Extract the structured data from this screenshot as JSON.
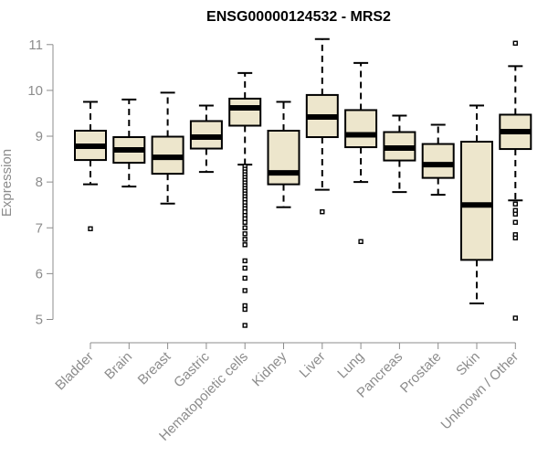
{
  "chart_data": {
    "type": "boxplot",
    "title": "ENSG00000124532 - MRS2",
    "xlabel": "",
    "ylabel": "Expression",
    "ylim": [
      4.7,
      11.3
    ],
    "yticks": [
      5,
      6,
      7,
      8,
      9,
      10,
      11
    ],
    "grid": false,
    "colors": {
      "box_fill": "#ede6cc",
      "stroke": "#000000",
      "axis": "#8c8c8c",
      "text": "#8c8c8c"
    },
    "categories": [
      "Bladder",
      "Brain",
      "Breast",
      "Gastric",
      "Hematopoietic cells",
      "Kidney",
      "Liver",
      "Lung",
      "Pancreas",
      "Prostate",
      "Skin",
      "Unknown / Other"
    ],
    "boxes": [
      {
        "category": "Bladder",
        "whisker_low": 7.95,
        "q1": 8.48,
        "median": 8.78,
        "q3": 9.12,
        "whisker_high": 9.75,
        "outliers": [
          6.98
        ]
      },
      {
        "category": "Brain",
        "whisker_low": 7.9,
        "q1": 8.42,
        "median": 8.7,
        "q3": 8.98,
        "whisker_high": 9.8,
        "outliers": []
      },
      {
        "category": "Breast",
        "whisker_low": 7.53,
        "q1": 8.18,
        "median": 8.54,
        "q3": 8.99,
        "whisker_high": 9.95,
        "outliers": []
      },
      {
        "category": "Gastric",
        "whisker_low": 8.22,
        "q1": 8.73,
        "median": 8.98,
        "q3": 9.33,
        "whisker_high": 9.67,
        "outliers": []
      },
      {
        "category": "Hematopoietic cells",
        "whisker_low": 8.38,
        "q1": 9.23,
        "median": 9.62,
        "q3": 9.82,
        "whisker_high": 10.38,
        "outliers": [
          8.34,
          8.28,
          8.22,
          8.16,
          8.1,
          8.04,
          7.98,
          7.92,
          7.86,
          7.8,
          7.74,
          7.68,
          7.62,
          7.55,
          7.48,
          7.42,
          7.35,
          7.27,
          7.2,
          7.12,
          7.0,
          6.87,
          6.75,
          6.63,
          6.28,
          6.12,
          5.9,
          5.63,
          5.3,
          5.22,
          4.87
        ]
      },
      {
        "category": "Kidney",
        "whisker_low": 7.45,
        "q1": 7.95,
        "median": 8.2,
        "q3": 9.12,
        "whisker_high": 9.75,
        "outliers": []
      },
      {
        "category": "Liver",
        "whisker_low": 7.83,
        "q1": 8.98,
        "median": 9.42,
        "q3": 9.9,
        "whisker_high": 11.12,
        "outliers": [
          7.35
        ]
      },
      {
        "category": "Lung",
        "whisker_low": 8.0,
        "q1": 8.76,
        "median": 9.03,
        "q3": 9.57,
        "whisker_high": 10.6,
        "outliers": [
          6.7
        ]
      },
      {
        "category": "Pancreas",
        "whisker_low": 7.78,
        "q1": 8.47,
        "median": 8.74,
        "q3": 9.09,
        "whisker_high": 9.45,
        "outliers": []
      },
      {
        "category": "Prostate",
        "whisker_low": 7.72,
        "q1": 8.09,
        "median": 8.38,
        "q3": 8.83,
        "whisker_high": 9.25,
        "outliers": []
      },
      {
        "category": "Skin",
        "whisker_low": 5.35,
        "q1": 6.3,
        "median": 7.5,
        "q3": 8.88,
        "whisker_high": 9.67,
        "outliers": []
      },
      {
        "category": "Unknown / Other",
        "whisker_low": 7.6,
        "q1": 8.72,
        "median": 9.1,
        "q3": 9.47,
        "whisker_high": 10.53,
        "outliers": [
          11.03,
          7.52,
          7.38,
          7.3,
          7.12,
          6.85,
          6.78,
          5.03
        ]
      }
    ]
  }
}
